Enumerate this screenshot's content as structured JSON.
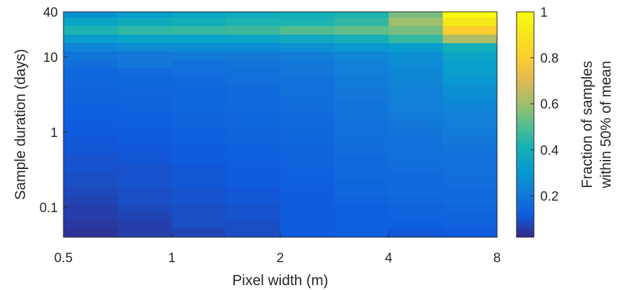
{
  "chart_data": {
    "type": "heatmap",
    "title": "",
    "xlabel": "Pixel width (m)",
    "ylabel": "Sample duration (days)",
    "x_scale": "log2",
    "y_scale": "log",
    "x_tick_labels": [
      "0.5",
      "1",
      "2",
      "4",
      "8"
    ],
    "x_tick_values": [
      0.5,
      1,
      2,
      4,
      8
    ],
    "y_tick_labels": [
      "0.1",
      "1",
      "10",
      "40"
    ],
    "y_tick_values": [
      0.1,
      1,
      10,
      40
    ],
    "colorbar": {
      "label_line1": "Fraction of samples",
      "label_line2": "within 50% of mean",
      "colormap": "parula",
      "range": [
        0.02,
        1
      ],
      "tick_labels": [
        "0.2",
        "0.4",
        "0.6",
        "0.8",
        "1"
      ],
      "tick_values": [
        0.2,
        0.4,
        0.6,
        0.8,
        1
      ]
    },
    "x_columns_m": [
      0.5,
      0.707,
      1,
      1.414,
      2,
      2.828,
      4,
      5.657
    ],
    "y_rows_days": [
      0.04,
      0.052,
      0.067,
      0.087,
      0.11,
      0.145,
      0.19,
      0.24,
      0.31,
      0.4,
      0.52,
      0.68,
      0.88,
      1.14,
      1.48,
      1.93,
      2.5,
      3.25,
      4.2,
      5.5,
      7.1,
      9.2,
      12,
      15.5,
      20.1,
      26.2,
      34
    ],
    "y_bottom_days": 0.04,
    "y_top_days": 40,
    "values": [
      [
        0.04,
        0.06,
        0.07,
        0.09,
        0.12,
        0.13,
        0.11,
        0.12
      ],
      [
        0.05,
        0.06,
        0.09,
        0.09,
        0.12,
        0.13,
        0.13,
        0.14
      ],
      [
        0.06,
        0.07,
        0.09,
        0.1,
        0.12,
        0.13,
        0.14,
        0.14
      ],
      [
        0.06,
        0.08,
        0.09,
        0.1,
        0.12,
        0.13,
        0.14,
        0.15
      ],
      [
        0.07,
        0.09,
        0.1,
        0.11,
        0.12,
        0.14,
        0.15,
        0.16
      ],
      [
        0.08,
        0.09,
        0.1,
        0.11,
        0.12,
        0.15,
        0.16,
        0.16
      ],
      [
        0.09,
        0.1,
        0.11,
        0.12,
        0.13,
        0.15,
        0.16,
        0.17
      ],
      [
        0.09,
        0.1,
        0.11,
        0.12,
        0.13,
        0.16,
        0.16,
        0.17
      ],
      [
        0.1,
        0.1,
        0.11,
        0.12,
        0.14,
        0.16,
        0.17,
        0.18
      ],
      [
        0.1,
        0.11,
        0.12,
        0.13,
        0.14,
        0.16,
        0.17,
        0.18
      ],
      [
        0.11,
        0.11,
        0.12,
        0.13,
        0.14,
        0.17,
        0.18,
        0.19
      ],
      [
        0.11,
        0.12,
        0.13,
        0.14,
        0.15,
        0.17,
        0.18,
        0.2
      ],
      [
        0.12,
        0.12,
        0.13,
        0.14,
        0.15,
        0.18,
        0.19,
        0.21
      ],
      [
        0.12,
        0.13,
        0.14,
        0.15,
        0.16,
        0.18,
        0.2,
        0.22
      ],
      [
        0.13,
        0.13,
        0.14,
        0.15,
        0.16,
        0.19,
        0.21,
        0.23
      ],
      [
        0.13,
        0.14,
        0.15,
        0.16,
        0.17,
        0.19,
        0.22,
        0.24
      ],
      [
        0.14,
        0.14,
        0.15,
        0.16,
        0.17,
        0.2,
        0.23,
        0.26
      ],
      [
        0.14,
        0.15,
        0.15,
        0.16,
        0.18,
        0.2,
        0.23,
        0.28
      ],
      [
        0.15,
        0.15,
        0.16,
        0.17,
        0.18,
        0.21,
        0.24,
        0.3
      ],
      [
        0.15,
        0.16,
        0.17,
        0.18,
        0.2,
        0.22,
        0.25,
        0.32
      ],
      [
        0.17,
        0.2,
        0.18,
        0.19,
        0.2,
        0.23,
        0.26,
        0.33
      ],
      [
        0.19,
        0.2,
        0.21,
        0.21,
        0.22,
        0.24,
        0.27,
        0.35
      ],
      [
        0.24,
        0.26,
        0.26,
        0.26,
        0.28,
        0.3,
        0.32,
        0.4
      ],
      [
        0.32,
        0.34,
        0.34,
        0.35,
        0.37,
        0.4,
        0.46,
        0.62
      ],
      [
        0.42,
        0.45,
        0.46,
        0.47,
        0.5,
        0.52,
        0.55,
        0.8
      ],
      [
        0.35,
        0.38,
        0.4,
        0.42,
        0.42,
        0.45,
        0.6,
        0.92
      ],
      [
        0.28,
        0.32,
        0.35,
        0.38,
        0.4,
        0.42,
        0.55,
        1.0
      ]
    ]
  }
}
